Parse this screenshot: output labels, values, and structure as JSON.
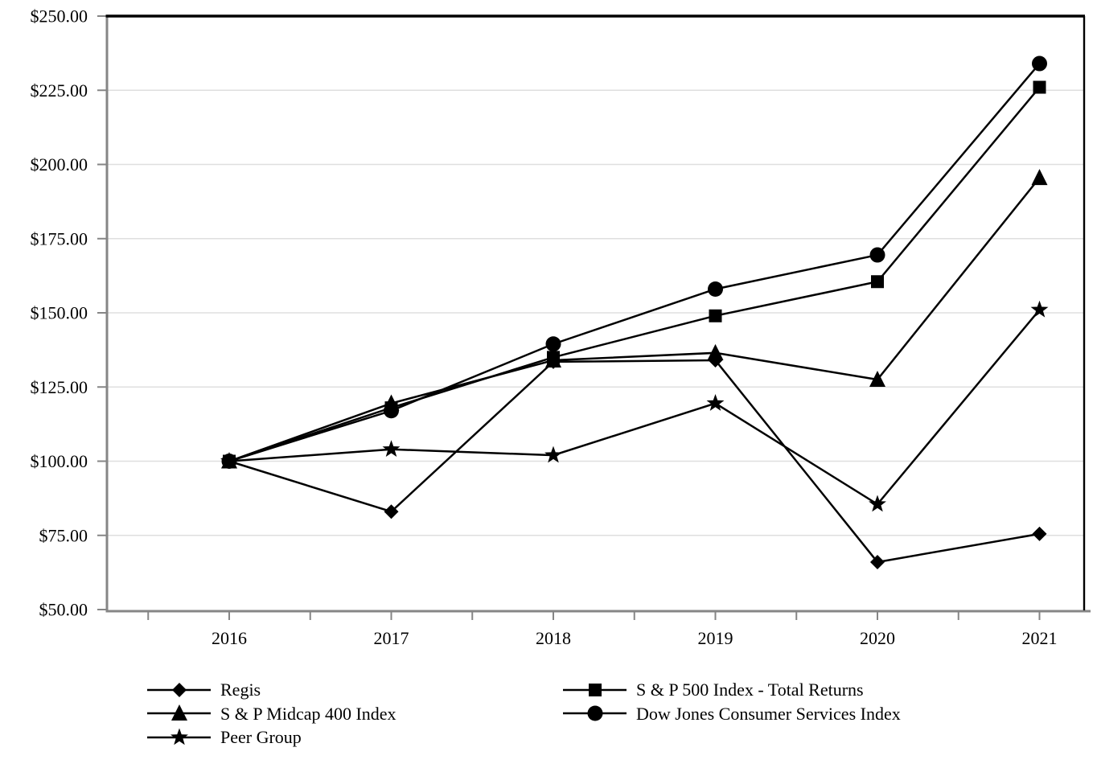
{
  "chart_data": {
    "type": "line",
    "title": "",
    "categories": [
      "2016",
      "2017",
      "2018",
      "2019",
      "2020",
      "2021"
    ],
    "series": [
      {
        "name": "Regis",
        "marker": "diamond",
        "values": [
          100,
          83,
          133.5,
          134,
          66,
          75.5
        ]
      },
      {
        "name": "S & P 500 Index - Total Returns",
        "marker": "square",
        "values": [
          100,
          118,
          135,
          149,
          160.5,
          226
        ]
      },
      {
        "name": "S & P Midcap 400 Index",
        "marker": "triangle",
        "values": [
          100,
          119.5,
          134,
          136.5,
          127.5,
          195.5
        ]
      },
      {
        "name": "Dow Jones Consumer Services Index",
        "marker": "circle",
        "values": [
          100,
          117,
          139.5,
          158,
          169.5,
          234
        ]
      },
      {
        "name": "Peer Group",
        "marker": "star",
        "values": [
          100,
          104,
          102,
          119.5,
          85.5,
          151
        ]
      }
    ],
    "y_axis": {
      "min": 50,
      "max": 250,
      "step": 25,
      "tick_labels": [
        "$250.00",
        "$225.00",
        "$200.00",
        "$175.00",
        "$150.00",
        "$125.00",
        "$100.00",
        "$75.00",
        "$50.00"
      ]
    },
    "x_axis": {
      "tick_labels": [
        "2016",
        "2017",
        "2018",
        "2019",
        "2020",
        "2021"
      ]
    },
    "legend": {
      "position": "bottom",
      "columns": [
        [
          0,
          2,
          4
        ],
        [
          1,
          3
        ]
      ]
    },
    "colors": {
      "series": "#000000",
      "gridline": "#dfdfdf",
      "axis": "#868686",
      "frame": "#000000",
      "background": "#ffffff"
    },
    "grid": true
  }
}
